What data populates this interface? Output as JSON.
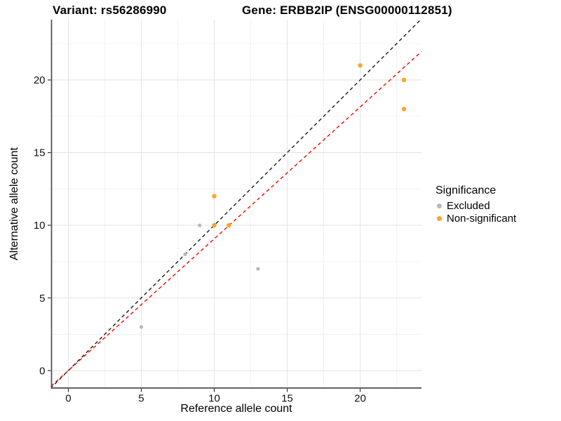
{
  "titles": {
    "variant": "Variant: rs56286990",
    "gene": "Gene: ERBB2IP (ENSG00000112851)"
  },
  "chart_data": {
    "type": "scatter",
    "xlabel": "Reference allele count",
    "ylabel": "Alternative allele count",
    "xlim": [
      -1.15,
      24.2
    ],
    "ylim": [
      -1.2,
      24.15
    ],
    "x_ticks": [
      0,
      5,
      10,
      15,
      20
    ],
    "y_ticks": [
      0,
      5,
      10,
      15,
      20
    ],
    "x_minor": [
      2.5,
      7.5,
      12.5,
      17.5,
      22.5
    ],
    "y_minor": [
      2.5,
      7.5,
      12.5,
      17.5,
      22.5
    ],
    "grid": true,
    "legend_position": "right",
    "series": [
      {
        "name": "Excluded",
        "color": "#B8B8B8",
        "radius": 2.6,
        "points": [
          [
            5,
            3
          ],
          [
            8,
            8
          ],
          [
            9,
            10
          ],
          [
            13,
            7
          ]
        ]
      },
      {
        "name": "Non-significant",
        "color": "#FFA425",
        "radius": 3.2,
        "points": [
          [
            10,
            10
          ],
          [
            10,
            12
          ],
          [
            11,
            10
          ],
          [
            20,
            21
          ],
          [
            23,
            18
          ],
          [
            23,
            20
          ]
        ]
      }
    ],
    "lines": [
      {
        "name": "identity-line",
        "slope": 1.0,
        "intercept": 0,
        "color": "#1A1A1A",
        "dash": "5,4"
      },
      {
        "name": "expected-ratio-line",
        "slope": 0.907,
        "intercept": 0,
        "color": "#FF0000",
        "dash": "5,4"
      }
    ]
  },
  "legend": {
    "title": "Significance",
    "items": [
      {
        "label": "Excluded",
        "color": "#B8B8B8"
      },
      {
        "label": "Non-significant",
        "color": "#FFA425"
      }
    ]
  }
}
